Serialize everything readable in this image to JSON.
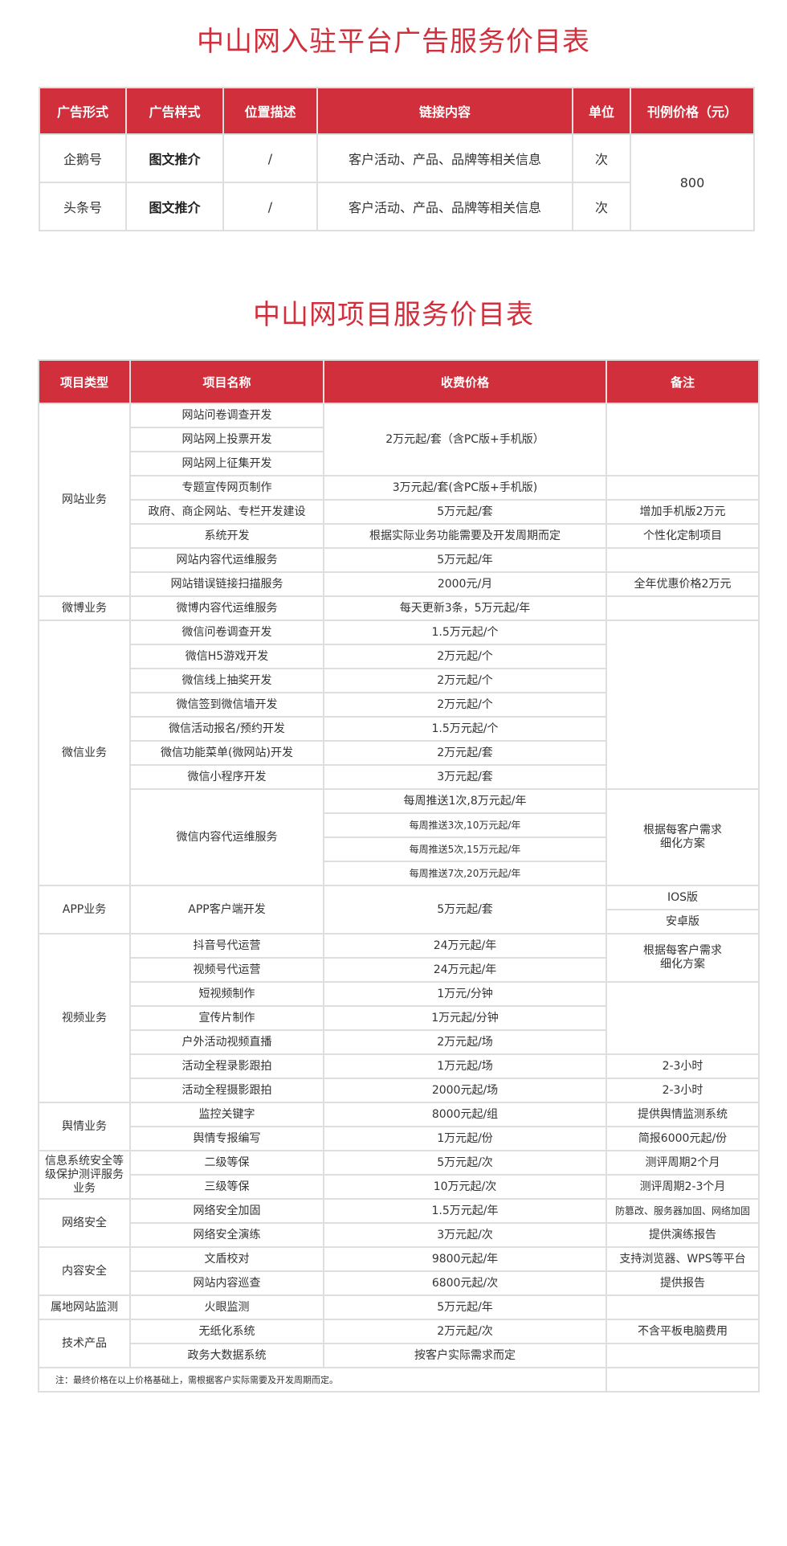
{
  "ad_table": {
    "title": "中山网入驻平台广告服务价目表",
    "headers": [
      "广告形式",
      "广告样式",
      "位置描述",
      "链接内容",
      "单位",
      "刊例价格（元）"
    ],
    "rows": [
      {
        "form": "企鹅号",
        "style": "图文推介",
        "position": "/",
        "link": "客户活动、产品、品牌等相关信息",
        "unit": "次"
      },
      {
        "form": "头条号",
        "style": "图文推介",
        "position": "/",
        "link": "客户活动、产品、品牌等相关信息",
        "unit": "次"
      }
    ],
    "price": "800"
  },
  "service_table": {
    "title": "中山网项目服务价目表",
    "headers": [
      "项目类型",
      "项目名称",
      "收费价格",
      "备注"
    ],
    "rows": [
      [
        {
          "text": "网站业务",
          "rowspan": 8
        },
        {
          "text": "网站问卷调查开发"
        },
        {
          "text": "2万元起/套（含PC版+手机版）",
          "rowspan": 3
        },
        {
          "text": "",
          "rowspan": 3
        }
      ],
      [
        {
          "text": "网站网上投票开发"
        }
      ],
      [
        {
          "text": "网站网上征集开发"
        }
      ],
      [
        {
          "text": "专题宣传网页制作"
        },
        {
          "text": "3万元起/套(含PC版+手机版)"
        },
        {
          "text": ""
        }
      ],
      [
        {
          "text": "政府、商企网站、专栏开发建设"
        },
        {
          "text": "5万元起/套"
        },
        {
          "text": "增加手机版2万元"
        }
      ],
      [
        {
          "text": "系统开发"
        },
        {
          "text": "根据实际业务功能需要及开发周期而定"
        },
        {
          "text": "个性化定制项目"
        }
      ],
      [
        {
          "text": "网站内容代运维服务"
        },
        {
          "text": "5万元起/年"
        },
        {
          "text": ""
        }
      ],
      [
        {
          "text": "网站错误链接扫描服务"
        },
        {
          "text": "2000元/月"
        },
        {
          "text": "全年优惠价格2万元"
        }
      ],
      [
        {
          "text": "微博业务"
        },
        {
          "text": "微博内容代运维服务"
        },
        {
          "text": "每天更新3条，5万元起/年"
        },
        {
          "text": ""
        }
      ],
      [
        {
          "text": "微信业务",
          "rowspan": 11
        },
        {
          "text": "微信问卷调查开发"
        },
        {
          "text": "1.5万元起/个"
        },
        {
          "text": "",
          "rowspan": 7
        }
      ],
      [
        {
          "text": "微信H5游戏开发"
        },
        {
          "text": "2万元起/个"
        }
      ],
      [
        {
          "text": "微信线上抽奖开发"
        },
        {
          "text": "2万元起/个"
        }
      ],
      [
        {
          "text": "微信签到微信墙开发"
        },
        {
          "text": "2万元起/个"
        }
      ],
      [
        {
          "text": "微信活动报名/预约开发"
        },
        {
          "text": "1.5万元起/个"
        }
      ],
      [
        {
          "text": "微信功能菜单(微网站)开发"
        },
        {
          "text": "2万元起/套"
        }
      ],
      [
        {
          "text": "微信小程序开发"
        },
        {
          "text": "3万元起/套"
        }
      ],
      [
        {
          "text": "微信内容代运维服务",
          "rowspan": 4
        },
        {
          "text": "每周推送1次,8万元起/年"
        },
        {
          "text": "根据每客户需求细化方案",
          "rowspan": 4
        }
      ],
      [
        {
          "text": "每周推送3次,10万元起/年"
        }
      ],
      [
        {
          "text": "每周推送5次,15万元起/年"
        }
      ],
      [
        {
          "text": "每周推送7次,20万元起/年"
        }
      ],
      [
        {
          "text": "APP业务",
          "rowspan": 2
        },
        {
          "text": "APP客户端开发",
          "rowspan": 2
        },
        {
          "text": "5万元起/套",
          "rowspan": 2
        },
        {
          "text": "IOS版"
        }
      ],
      [
        {
          "text": "安卓版"
        }
      ],
      [
        {
          "text": "视频业务",
          "rowspan": 7
        },
        {
          "text": "抖音号代运营"
        },
        {
          "text": "24万元起/年"
        },
        {
          "text": "根据每客户需求细化方案",
          "rowspan": 2
        }
      ],
      [
        {
          "text": "视频号代运营"
        },
        {
          "text": "24万元起/年"
        }
      ],
      [
        {
          "text": "短视频制作"
        },
        {
          "text": "1万元/分钟"
        },
        {
          "text": "",
          "rowspan": 3
        }
      ],
      [
        {
          "text": "宣传片制作"
        },
        {
          "text": "1万元起/分钟"
        }
      ],
      [
        {
          "text": "户外活动视频直播"
        },
        {
          "text": "2万元起/场"
        }
      ],
      [
        {
          "text": "活动全程录影跟拍"
        },
        {
          "text": "1万元起/场"
        },
        {
          "text": "2-3小时"
        }
      ],
      [
        {
          "text": "活动全程摄影跟拍"
        },
        {
          "text": "2000元起/场"
        },
        {
          "text": "2-3小时"
        }
      ],
      [
        {
          "text": "舆情业务",
          "rowspan": 2
        },
        {
          "text": "监控关键字"
        },
        {
          "text": "8000元起/组"
        },
        {
          "text": "提供舆情监测系统"
        }
      ],
      [
        {
          "text": "舆情专报编写"
        },
        {
          "text": "1万元起/份"
        },
        {
          "text": "简报6000元起/份"
        }
      ],
      [
        {
          "text": "信息系统安全等级保护测评服务业务",
          "rowspan": 2
        },
        {
          "text": "二级等保"
        },
        {
          "text": "5万元起/次"
        },
        {
          "text": "测评周期2个月"
        }
      ],
      [
        {
          "text": "三级等保"
        },
        {
          "text": "10万元起/次"
        },
        {
          "text": "测评周期2-3个月"
        }
      ],
      [
        {
          "text": "网络安全",
          "rowspan": 2
        },
        {
          "text": "网络安全加固"
        },
        {
          "text": "1.5万元起/年"
        },
        {
          "text": "防篡改、服务器加固、网络加固"
        }
      ],
      [
        {
          "text": "网络安全演练"
        },
        {
          "text": "3万元起/次"
        },
        {
          "text": "提供演练报告"
        }
      ],
      [
        {
          "text": "内容安全",
          "rowspan": 2
        },
        {
          "text": "文盾校对"
        },
        {
          "text": "9800元起/年"
        },
        {
          "text": "支持浏览器、WPS等平台"
        }
      ],
      [
        {
          "text": "网站内容巡查"
        },
        {
          "text": "6800元起/次"
        },
        {
          "text": "提供报告"
        }
      ],
      [
        {
          "text": "属地网站监测"
        },
        {
          "text": "火眼监测"
        },
        {
          "text": "5万元起/年"
        },
        {
          "text": ""
        }
      ],
      [
        {
          "text": "技术产品",
          "rowspan": 2
        },
        {
          "text": "无纸化系统"
        },
        {
          "text": "2万元起/次"
        },
        {
          "text": "不含平板电脑费用"
        }
      ],
      [
        {
          "text": "政务大数据系统"
        },
        {
          "text": "按客户实际需求而定"
        },
        {
          "text": ""
        }
      ]
    ],
    "note": "注：最终价格在以上价格基础上，需根据客户实际需要及开发周期而定。"
  },
  "colors": {
    "header_bg": "#d22f3c",
    "title": "#d22f3c",
    "border": "#dedede"
  }
}
